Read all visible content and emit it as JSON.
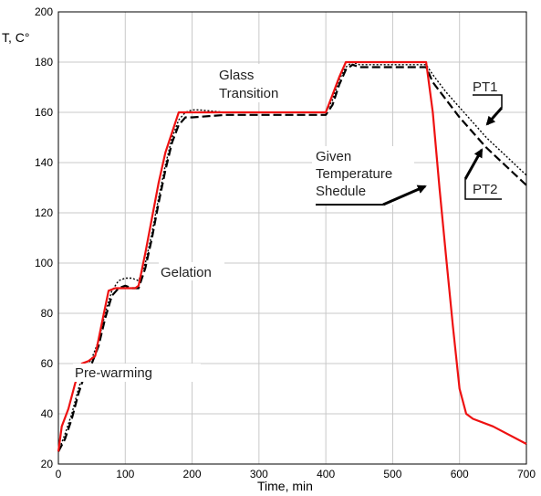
{
  "chart_data": {
    "type": "line",
    "title": "",
    "xlabel": "Time, min",
    "ylabel": "T, C°",
    "xlim": [
      0,
      700
    ],
    "ylim": [
      20,
      200
    ],
    "x_ticks": [
      0,
      100,
      200,
      300,
      400,
      500,
      600,
      700
    ],
    "y_ticks": [
      20,
      40,
      60,
      80,
      100,
      120,
      140,
      160,
      180,
      200
    ],
    "grid": true,
    "series": [
      {
        "name": "Given Temperature Shedule",
        "color": "#ee1111",
        "style": "solid",
        "x": [
          0,
          5,
          15,
          25,
          35,
          45,
          55,
          65,
          75,
          85,
          100,
          115,
          120,
          130,
          140,
          150,
          160,
          170,
          180,
          190,
          200,
          250,
          300,
          350,
          400,
          410,
          420,
          430,
          440,
          450,
          500,
          550,
          560,
          570,
          580,
          590,
          600,
          610,
          620,
          650,
          700
        ],
        "y": [
          25,
          35,
          42,
          52,
          60,
          61,
          63,
          76,
          89,
          90,
          90,
          90,
          91,
          104,
          118,
          132,
          144,
          152,
          160,
          160,
          160,
          160,
          160,
          160,
          160,
          167,
          174,
          180,
          180,
          180,
          180,
          180,
          160,
          130,
          102,
          75,
          50,
          40,
          38,
          35,
          28
        ]
      },
      {
        "name": "PT2",
        "color": "#000000",
        "style": "dashed",
        "x": [
          0,
          10,
          20,
          30,
          40,
          50,
          60,
          70,
          80,
          90,
          100,
          110,
          120,
          130,
          140,
          150,
          160,
          170,
          180,
          190,
          200,
          250,
          300,
          350,
          400,
          410,
          420,
          430,
          440,
          450,
          500,
          550,
          560,
          580,
          600,
          620,
          640,
          660,
          680,
          700
        ],
        "y": [
          25,
          30,
          38,
          48,
          56,
          60,
          67,
          78,
          87,
          90,
          91,
          90,
          90,
          98,
          110,
          124,
          137,
          148,
          155,
          158,
          158,
          159,
          159,
          159,
          159,
          163,
          171,
          177,
          179,
          178,
          178,
          178,
          172,
          165,
          158,
          152,
          146,
          141,
          136,
          131
        ]
      },
      {
        "name": "PT1",
        "color": "#000000",
        "style": "dotted",
        "x": [
          0,
          10,
          20,
          30,
          40,
          50,
          60,
          70,
          80,
          90,
          100,
          110,
          120,
          130,
          140,
          150,
          160,
          170,
          180,
          190,
          200,
          210,
          250,
          300,
          350,
          400,
          410,
          420,
          430,
          440,
          450,
          500,
          550,
          560,
          580,
          600,
          620,
          640,
          660,
          680,
          700
        ],
        "y": [
          25,
          32,
          40,
          50,
          58,
          62,
          69,
          80,
          89,
          93,
          94,
          94,
          93,
          100,
          112,
          126,
          139,
          150,
          157,
          160,
          161,
          161,
          160,
          160,
          160,
          160,
          165,
          173,
          178,
          180,
          179,
          179,
          179,
          175,
          168,
          162,
          156,
          150,
          145,
          140,
          135
        ]
      }
    ],
    "annotations": {
      "glass": "Glass Transition",
      "gelation": "Gelation",
      "prewarm": "Pre-warming",
      "given_line1": "Given",
      "given_line2": "Temperature",
      "given_line3": "Shedule",
      "pt1": "PT1",
      "pt2": "PT2"
    }
  }
}
